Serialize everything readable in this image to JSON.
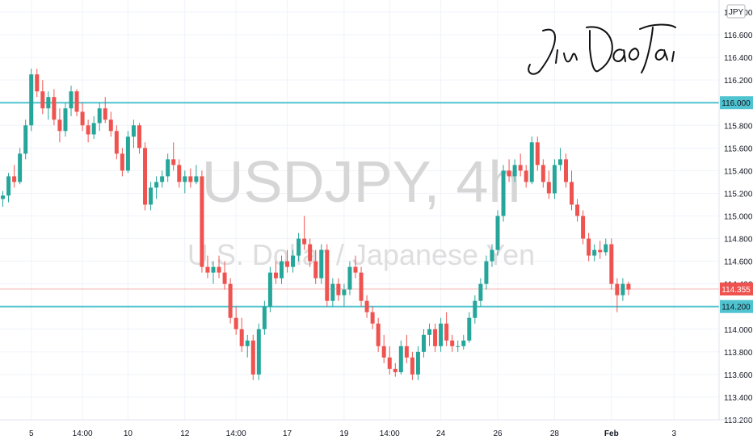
{
  "chart_data": {
    "type": "candlestick",
    "watermark": {
      "symbol": "USDJPY, 4h",
      "description": "U.S. Dollar / Japanese Yen"
    },
    "signature": "JinDaoTai",
    "currency": "JPY",
    "y_ticks": [
      "113.200",
      "113.400",
      "113.600",
      "113.800",
      "114.000",
      "114.200",
      "114.400",
      "114.600",
      "114.800",
      "115.000",
      "115.200",
      "115.400",
      "115.600",
      "115.800",
      "116.000",
      "116.200",
      "116.400",
      "116.600",
      "116.800"
    ],
    "ylim": [
      113.2,
      116.8
    ],
    "x_ticks": [
      {
        "label": "5",
        "index": 5,
        "bold": false
      },
      {
        "label": "14:00",
        "index": 14,
        "bold": false
      },
      {
        "label": "10",
        "index": 22,
        "bold": false
      },
      {
        "label": "12",
        "index": 32,
        "bold": false
      },
      {
        "label": "14:00",
        "index": 41,
        "bold": false
      },
      {
        "label": "17",
        "index": 50,
        "bold": false
      },
      {
        "label": "19",
        "index": 60,
        "bold": false
      },
      {
        "label": "14:00",
        "index": 68,
        "bold": false
      },
      {
        "label": "24",
        "index": 77,
        "bold": false
      },
      {
        "label": "26",
        "index": 87,
        "bold": false
      },
      {
        "label": "28",
        "index": 97,
        "bold": false
      },
      {
        "label": "Feb",
        "index": 107,
        "bold": true
      },
      {
        "label": "3",
        "index": 118,
        "bold": false
      }
    ],
    "levels": [
      {
        "value": 116.0,
        "label": "116.000",
        "color": "#4fc3cf"
      },
      {
        "value": 114.2,
        "label": "114.200",
        "color": "#4fc3cf"
      }
    ],
    "last_price": {
      "value": 114.355,
      "label": "114.355",
      "color": "#ef5350"
    },
    "colors": {
      "up": "#26a69a",
      "down": "#ef5350"
    },
    "candles": [
      [
        115.15,
        115.22,
        115.08,
        115.18
      ],
      [
        115.18,
        115.38,
        115.12,
        115.35
      ],
      [
        115.35,
        115.45,
        115.25,
        115.3
      ],
      [
        115.3,
        115.6,
        115.28,
        115.55
      ],
      [
        115.55,
        115.85,
        115.5,
        115.8
      ],
      [
        115.8,
        116.3,
        115.75,
        116.25
      ],
      [
        116.25,
        116.3,
        116.05,
        116.1
      ],
      [
        116.1,
        116.2,
        115.9,
        115.95
      ],
      [
        115.95,
        116.1,
        115.85,
        116.05
      ],
      [
        116.05,
        116.12,
        115.8,
        115.85
      ],
      [
        115.85,
        115.95,
        115.65,
        115.75
      ],
      [
        115.75,
        116.0,
        115.7,
        115.95
      ],
      [
        115.95,
        116.15,
        115.88,
        116.1
      ],
      [
        116.1,
        116.12,
        115.88,
        115.92
      ],
      [
        115.92,
        116.0,
        115.75,
        115.8
      ],
      [
        115.8,
        115.85,
        115.65,
        115.72
      ],
      [
        115.72,
        115.88,
        115.68,
        115.82
      ],
      [
        115.82,
        116.0,
        115.75,
        115.95
      ],
      [
        115.95,
        116.05,
        115.82,
        115.85
      ],
      [
        115.85,
        115.92,
        115.7,
        115.75
      ],
      [
        115.75,
        115.8,
        115.5,
        115.55
      ],
      [
        115.55,
        115.6,
        115.35,
        115.4
      ],
      [
        115.4,
        115.75,
        115.38,
        115.7
      ],
      [
        115.7,
        115.85,
        115.6,
        115.8
      ],
      [
        115.8,
        115.82,
        115.55,
        115.6
      ],
      [
        115.6,
        115.65,
        115.05,
        115.1
      ],
      [
        115.1,
        115.3,
        115.05,
        115.25
      ],
      [
        115.25,
        115.35,
        115.15,
        115.3
      ],
      [
        115.3,
        115.4,
        115.25,
        115.35
      ],
      [
        115.35,
        115.55,
        115.3,
        115.5
      ],
      [
        115.5,
        115.65,
        115.4,
        115.45
      ],
      [
        115.45,
        115.5,
        115.25,
        115.3
      ],
      [
        115.3,
        115.4,
        115.2,
        115.35
      ],
      [
        115.35,
        115.42,
        115.25,
        115.3
      ],
      [
        115.3,
        115.45,
        115.28,
        115.35
      ],
      [
        115.35,
        115.4,
        114.5,
        114.55
      ],
      [
        114.55,
        114.65,
        114.45,
        114.5
      ],
      [
        114.5,
        114.6,
        114.4,
        114.55
      ],
      [
        114.55,
        114.65,
        114.45,
        114.5
      ],
      [
        114.5,
        114.6,
        114.35,
        114.4
      ],
      [
        114.4,
        114.45,
        114.05,
        114.1
      ],
      [
        114.1,
        114.2,
        113.95,
        114.0
      ],
      [
        114.0,
        114.1,
        113.8,
        113.85
      ],
      [
        113.85,
        113.95,
        113.75,
        113.9
      ],
      [
        113.9,
        113.95,
        113.55,
        113.6
      ],
      [
        113.6,
        114.05,
        113.55,
        114.0
      ],
      [
        114.0,
        114.25,
        113.95,
        114.2
      ],
      [
        114.2,
        114.55,
        114.15,
        114.5
      ],
      [
        114.5,
        114.6,
        114.4,
        114.45
      ],
      [
        114.45,
        114.65,
        114.4,
        114.6
      ],
      [
        114.6,
        114.7,
        114.5,
        114.55
      ],
      [
        114.55,
        114.7,
        114.5,
        114.65
      ],
      [
        114.65,
        114.85,
        114.6,
        114.8
      ],
      [
        114.8,
        115.0,
        114.7,
        114.75
      ],
      [
        114.75,
        114.8,
        114.55,
        114.6
      ],
      [
        114.6,
        114.7,
        114.4,
        114.45
      ],
      [
        114.45,
        114.75,
        114.4,
        114.7
      ],
      [
        114.7,
        114.75,
        114.2,
        114.25
      ],
      [
        114.25,
        114.45,
        114.2,
        114.4
      ],
      [
        114.4,
        114.45,
        114.25,
        114.3
      ],
      [
        114.3,
        114.4,
        114.2,
        114.35
      ],
      [
        114.35,
        114.6,
        114.3,
        114.55
      ],
      [
        114.55,
        114.65,
        114.45,
        114.5
      ],
      [
        114.5,
        114.55,
        114.2,
        114.25
      ],
      [
        114.25,
        114.3,
        114.1,
        114.15
      ],
      [
        114.15,
        114.2,
        114.0,
        114.05
      ],
      [
        114.05,
        114.1,
        113.8,
        113.85
      ],
      [
        113.85,
        113.95,
        113.7,
        113.75
      ],
      [
        113.75,
        113.85,
        113.6,
        113.65
      ],
      [
        113.65,
        113.7,
        113.58,
        113.62
      ],
      [
        113.62,
        113.9,
        113.6,
        113.85
      ],
      [
        113.85,
        113.95,
        113.7,
        113.75
      ],
      [
        113.75,
        113.8,
        113.55,
        113.6
      ],
      [
        113.6,
        113.85,
        113.55,
        113.8
      ],
      [
        113.8,
        114.0,
        113.75,
        113.95
      ],
      [
        113.95,
        114.05,
        113.85,
        114.0
      ],
      [
        114.0,
        114.05,
        113.8,
        113.85
      ],
      [
        113.85,
        114.1,
        113.8,
        114.05
      ],
      [
        114.05,
        114.15,
        113.85,
        113.9
      ],
      [
        113.9,
        113.95,
        113.8,
        113.85
      ],
      [
        113.85,
        113.9,
        113.8,
        113.85
      ],
      [
        113.85,
        113.95,
        113.82,
        113.9
      ],
      [
        113.9,
        114.15,
        113.88,
        114.1
      ],
      [
        114.1,
        114.3,
        114.05,
        114.25
      ],
      [
        114.25,
        114.45,
        114.2,
        114.4
      ],
      [
        114.4,
        114.65,
        114.35,
        114.6
      ],
      [
        114.6,
        114.75,
        114.55,
        114.7
      ],
      [
        114.7,
        115.05,
        114.65,
        115.0
      ],
      [
        115.0,
        115.45,
        114.95,
        115.4
      ],
      [
        115.4,
        115.5,
        115.3,
        115.35
      ],
      [
        115.35,
        115.5,
        115.3,
        115.45
      ],
      [
        115.45,
        115.55,
        115.35,
        115.4
      ],
      [
        115.4,
        115.45,
        115.25,
        115.3
      ],
      [
        115.3,
        115.7,
        115.28,
        115.65
      ],
      [
        115.65,
        115.7,
        115.4,
        115.45
      ],
      [
        115.45,
        115.5,
        115.25,
        115.3
      ],
      [
        115.3,
        115.4,
        115.15,
        115.2
      ],
      [
        115.2,
        115.5,
        115.15,
        115.45
      ],
      [
        115.45,
        115.6,
        115.4,
        115.5
      ],
      [
        115.5,
        115.55,
        115.25,
        115.3
      ],
      [
        115.3,
        115.4,
        115.05,
        115.1
      ],
      [
        115.1,
        115.15,
        114.95,
        115.0
      ],
      [
        115.0,
        115.05,
        114.75,
        114.8
      ],
      [
        114.8,
        114.85,
        114.6,
        114.65
      ],
      [
        114.65,
        114.75,
        114.6,
        114.7
      ],
      [
        114.7,
        114.78,
        114.62,
        114.68
      ],
      [
        114.68,
        114.8,
        114.65,
        114.75
      ],
      [
        114.75,
        114.8,
        114.35,
        114.4
      ],
      [
        114.4,
        114.45,
        114.15,
        114.3
      ],
      [
        114.3,
        114.45,
        114.25,
        114.4
      ],
      [
        114.4,
        114.42,
        114.3,
        114.35
      ]
    ]
  }
}
